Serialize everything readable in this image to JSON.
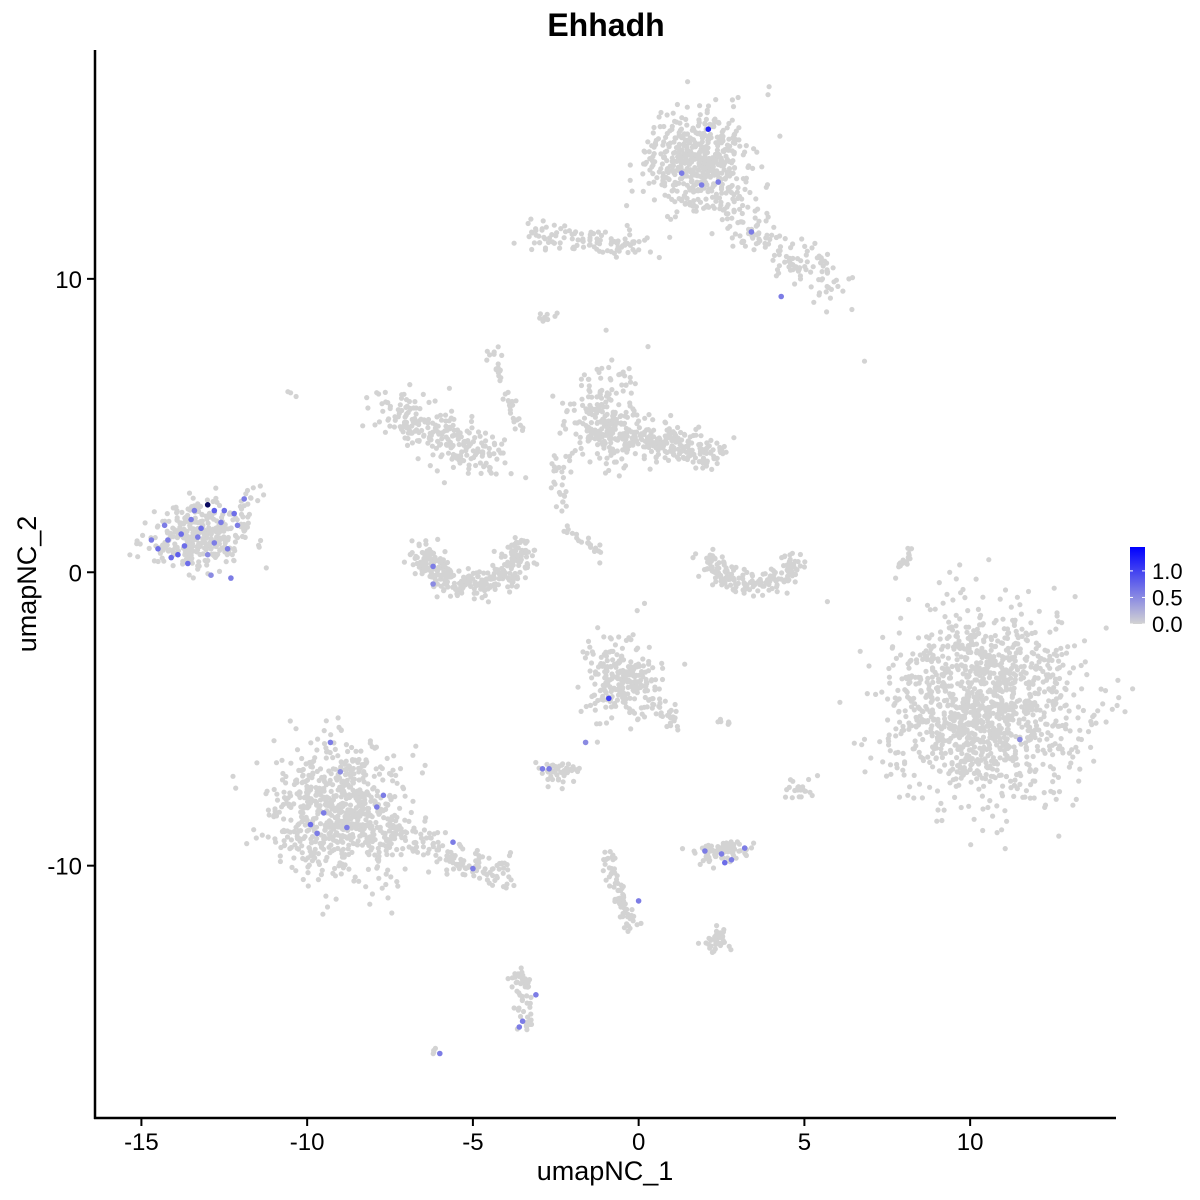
{
  "chart_data": {
    "type": "scatter",
    "title": "Ehhadh",
    "xlabel": "umapNC_1",
    "ylabel": "umapNC_2",
    "xlim": [
      -16.4,
      14.4
    ],
    "ylim": [
      -18.6,
      17.8
    ],
    "xticks": [
      -15,
      -10,
      -5,
      0,
      5,
      10
    ],
    "yticks": [
      -10,
      0,
      10
    ],
    "grid": false,
    "colors": {
      "low": "#d3d3d3",
      "high": "#0000ff"
    },
    "legend": {
      "placement": "right",
      "ticks": [
        0.0,
        0.5,
        1.0
      ],
      "tick_labels": [
        "0.0",
        "0.5",
        "1.0"
      ],
      "range": [
        0,
        1.45
      ]
    },
    "clusters": [
      {
        "type": "blob",
        "center": [
          -13.4,
          1.2
        ],
        "sd": [
          0.75,
          0.55
        ],
        "n": 320
      },
      {
        "type": "line",
        "from": [
          -12.4,
          1.6
        ],
        "to": [
          -11.5,
          2.8
        ],
        "n": 25,
        "sd": 0.15
      },
      {
        "type": "blob",
        "center": [
          1.8,
          14.0
        ],
        "sd": [
          0.8,
          0.8
        ],
        "n": 520
      },
      {
        "type": "line",
        "from": [
          -3.5,
          11.6
        ],
        "to": [
          0.5,
          11.0
        ],
        "n": 110,
        "sd": 0.25
      },
      {
        "type": "line",
        "from": [
          2.3,
          12.8
        ],
        "to": [
          6.0,
          9.6
        ],
        "n": 160,
        "sd": 0.4
      },
      {
        "type": "line",
        "from": [
          -7.5,
          5.6
        ],
        "to": [
          -4.4,
          3.7
        ],
        "n": 240,
        "sd": 0.4
      },
      {
        "type": "arc",
        "center": [
          -5.0,
          0.9
        ],
        "r": [
          1.5,
          1.3
        ],
        "n": 320,
        "sd": 0.25
      },
      {
        "type": "blob",
        "center": [
          -1.0,
          5.2
        ],
        "sd": [
          0.6,
          0.8
        ],
        "n": 240
      },
      {
        "type": "line",
        "from": [
          -0.3,
          4.6
        ],
        "to": [
          2.6,
          4.0
        ],
        "n": 200,
        "sd": 0.3
      },
      {
        "type": "line",
        "from": [
          -2.5,
          3.8
        ],
        "to": [
          -2.3,
          2.2
        ],
        "n": 25,
        "sd": 0.15
      },
      {
        "type": "arc",
        "center": [
          3.4,
          0.6
        ],
        "r": [
          1.3,
          1.0
        ],
        "n": 180,
        "sd": 0.2
      },
      {
        "type": "blob",
        "center": [
          10.4,
          -4.6
        ],
        "sd": [
          1.45,
          1.55
        ],
        "n": 1300
      },
      {
        "type": "blob",
        "center": [
          -9.0,
          -8.2
        ],
        "sd": [
          1.0,
          1.2
        ],
        "n": 720
      },
      {
        "type": "line",
        "from": [
          -8.0,
          -8.5
        ],
        "to": [
          -3.9,
          -10.5
        ],
        "n": 150,
        "sd": 0.3
      },
      {
        "type": "blob",
        "center": [
          -0.5,
          -3.6
        ],
        "sd": [
          0.55,
          0.65
        ],
        "n": 260
      },
      {
        "type": "line",
        "from": [
          0.4,
          -4.3
        ],
        "to": [
          1.2,
          -5.3
        ],
        "n": 30,
        "sd": 0.12
      },
      {
        "type": "blob",
        "center": [
          -2.4,
          -6.8
        ],
        "sd": [
          0.3,
          0.2
        ],
        "n": 45
      },
      {
        "type": "blob",
        "center": [
          2.5,
          -9.5
        ],
        "sd": [
          0.45,
          0.2
        ],
        "n": 70
      },
      {
        "type": "line",
        "from": [
          -1.0,
          -9.5
        ],
        "to": [
          -0.2,
          -12.2
        ],
        "n": 70,
        "sd": 0.15
      },
      {
        "type": "blob",
        "center": [
          2.3,
          -12.6
        ],
        "sd": [
          0.3,
          0.2
        ],
        "n": 35
      },
      {
        "type": "line",
        "from": [
          -3.6,
          -13.6
        ],
        "to": [
          -3.3,
          -15.6
        ],
        "n": 55,
        "sd": 0.15
      },
      {
        "type": "blob",
        "center": [
          4.9,
          -7.4
        ],
        "sd": [
          0.25,
          0.2
        ],
        "n": 22
      },
      {
        "type": "line",
        "from": [
          -4.5,
          7.6
        ],
        "to": [
          -3.6,
          4.8
        ],
        "n": 40,
        "sd": 0.1
      },
      {
        "type": "line",
        "from": [
          7.8,
          -0.2
        ],
        "to": [
          8.2,
          0.9
        ],
        "n": 18,
        "sd": 0.08
      },
      {
        "type": "line",
        "from": [
          -2.2,
          1.5
        ],
        "to": [
          -1.1,
          0.6
        ],
        "n": 22,
        "sd": 0.08
      },
      {
        "type": "blob",
        "center": [
          -2.8,
          8.7
        ],
        "sd": [
          0.15,
          0.1
        ],
        "n": 10
      },
      {
        "type": "blob",
        "center": [
          2.6,
          -5.1
        ],
        "sd": [
          0.1,
          0.1
        ],
        "n": 6
      },
      {
        "type": "blob",
        "center": [
          -10.5,
          6.1
        ],
        "sd": [
          0.08,
          0.08
        ],
        "n": 3
      },
      {
        "type": "blob",
        "center": [
          6.8,
          7.1
        ],
        "sd": [
          0.03,
          0.03
        ],
        "n": 1
      },
      {
        "type": "blob",
        "center": [
          -6.2,
          -16.3
        ],
        "sd": [
          0.1,
          0.08
        ],
        "n": 4
      }
    ],
    "expressing_points": [
      [
        -13.0,
        2.3,
        1.45
      ],
      [
        -12.5,
        2.1,
        0.7
      ],
      [
        -13.5,
        1.8,
        0.6
      ],
      [
        -13.8,
        1.3,
        0.7
      ],
      [
        -14.2,
        1.1,
        0.6
      ],
      [
        -14.5,
        0.8,
        0.7
      ],
      [
        -13.9,
        0.6,
        0.8
      ],
      [
        -13.2,
        1.5,
        0.7
      ],
      [
        -12.8,
        1.0,
        0.6
      ],
      [
        -12.4,
        0.8,
        0.6
      ],
      [
        -13.6,
        0.3,
        0.7
      ],
      [
        -14.7,
        1.1,
        0.6
      ],
      [
        -12.2,
        2.0,
        0.7
      ],
      [
        -11.9,
        2.5,
        0.6
      ],
      [
        -12.8,
        2.1,
        0.8
      ],
      [
        -13.3,
        1.2,
        0.6
      ],
      [
        -14.1,
        0.5,
        0.7
      ],
      [
        -13.0,
        0.6,
        0.5
      ],
      [
        -12.6,
        1.7,
        0.6
      ],
      [
        -12.3,
        -0.2,
        0.6
      ],
      [
        -12.9,
        -0.1,
        0.5
      ],
      [
        -14.3,
        1.6,
        0.6
      ],
      [
        -13.7,
        0.9,
        0.7
      ],
      [
        -12.1,
        1.6,
        0.6
      ],
      [
        -13.4,
        2.1,
        0.6
      ],
      [
        2.1,
        15.1,
        1.2
      ],
      [
        1.3,
        13.6,
        0.6
      ],
      [
        1.9,
        13.2,
        0.6
      ],
      [
        2.4,
        13.3,
        0.6
      ],
      [
        3.4,
        11.6,
        0.6
      ],
      [
        4.3,
        9.4,
        0.6
      ],
      [
        -6.2,
        0.2,
        0.6
      ],
      [
        -6.2,
        -0.4,
        0.5
      ],
      [
        -0.9,
        -4.3,
        1.0
      ],
      [
        11.5,
        -5.7,
        0.5
      ],
      [
        -9.3,
        -5.8,
        0.6
      ],
      [
        -9.0,
        -6.8,
        0.5
      ],
      [
        -7.7,
        -7.6,
        0.6
      ],
      [
        -7.9,
        -8.0,
        0.6
      ],
      [
        -9.5,
        -8.2,
        0.6
      ],
      [
        -9.7,
        -8.9,
        0.6
      ],
      [
        -9.9,
        -8.6,
        0.7
      ],
      [
        -8.8,
        -8.7,
        0.6
      ],
      [
        -5.6,
        -9.2,
        0.6
      ],
      [
        -5.0,
        -10.1,
        0.6
      ],
      [
        -2.7,
        -6.7,
        0.6
      ],
      [
        -2.9,
        -6.7,
        0.6
      ],
      [
        -1.6,
        -5.8,
        0.5
      ],
      [
        2.0,
        -9.5,
        0.6
      ],
      [
        2.5,
        -9.6,
        0.6
      ],
      [
        2.6,
        -9.9,
        0.7
      ],
      [
        2.8,
        -9.8,
        0.6
      ],
      [
        3.2,
        -9.4,
        0.6
      ],
      [
        0.0,
        -11.2,
        0.6
      ],
      [
        -3.1,
        -14.4,
        0.6
      ],
      [
        -3.5,
        -15.3,
        0.6
      ],
      [
        -3.6,
        -15.5,
        0.6
      ],
      [
        -6.0,
        -16.4,
        0.6
      ]
    ]
  }
}
